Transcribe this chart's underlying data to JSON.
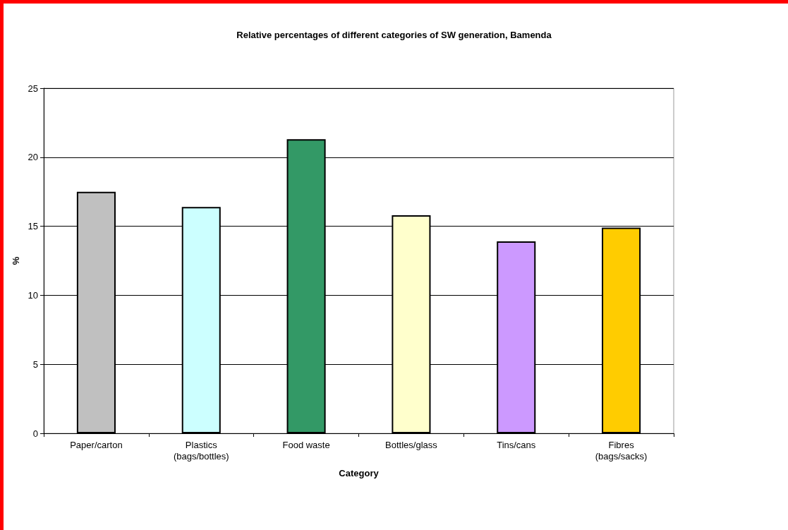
{
  "chart_data": {
    "type": "bar",
    "title": "Relative percentages of different categories of SW generation, Bamenda",
    "xlabel": "Category",
    "ylabel": "%",
    "categories": [
      "Paper/carton",
      "Plastics (bags/bottles)",
      "Food waste",
      "Bottles/glass",
      "Tins/cans",
      "Fibres (bags/sacks)"
    ],
    "values": [
      17.5,
      16.4,
      21.3,
      15.8,
      13.9,
      14.9
    ],
    "colors": [
      "#c0c0c0",
      "#ccffff",
      "#339966",
      "#ffffcc",
      "#cc99ff",
      "#ffcc00"
    ],
    "ylim": [
      0,
      25
    ],
    "yticks": [
      0,
      5,
      10,
      15,
      20,
      25
    ],
    "grid": "y"
  }
}
